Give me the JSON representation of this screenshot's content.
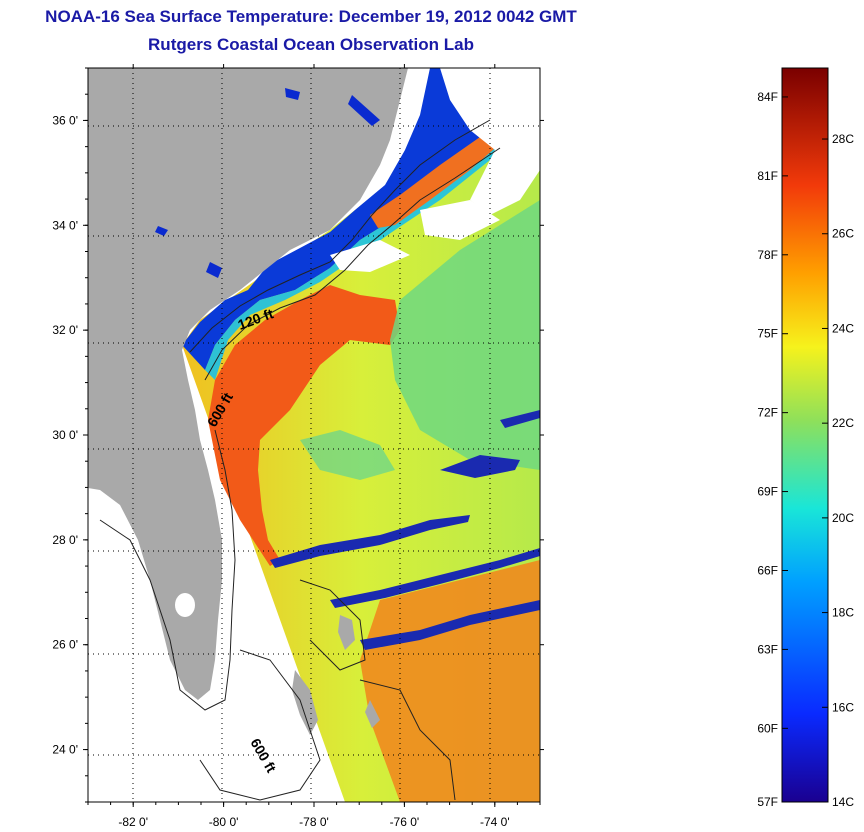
{
  "header": {
    "title": "NOAA-16 Sea Surface Temperature:  December 19, 2012 0042 GMT",
    "subtitle": "Rutgers Coastal Ocean Observation Lab"
  },
  "map": {
    "lon_range": [
      -83,
      -73
    ],
    "lat_range": [
      23,
      37
    ],
    "lon_ticks": [
      {
        "value": -82,
        "label": "-82 0'"
      },
      {
        "value": -80,
        "label": "-80 0'"
      },
      {
        "value": -78,
        "label": "-78 0'"
      },
      {
        "value": -76,
        "label": "-76 0'"
      },
      {
        "value": -74,
        "label": "-74 0'"
      }
    ],
    "lat_ticks": [
      {
        "value": 36,
        "label": "36 0'"
      },
      {
        "value": 34,
        "label": "34 0'"
      },
      {
        "value": 32,
        "label": "32 0'"
      },
      {
        "value": 30,
        "label": "30 0'"
      },
      {
        "value": 28,
        "label": "28 0'"
      },
      {
        "value": 26,
        "label": "26 0'"
      },
      {
        "value": 24,
        "label": "24 0'"
      }
    ],
    "grid": "dotted",
    "contour_labels": [
      {
        "text": "120 ft"
      },
      {
        "text": "600 ft"
      },
      {
        "text": "600 ft"
      }
    ],
    "colors": {
      "land": "#a9a9a9",
      "no_data": "#ffffff",
      "cold": "#0a2ad0",
      "cool": "#19d7e6",
      "mild": "#8fe05a",
      "warm": "#f2e11e",
      "hot": "#f1580f"
    }
  },
  "colorbar": {
    "range_c": [
      14,
      29.5
    ],
    "celsius_ticks": [
      "28C",
      "26C",
      "24C",
      "22C",
      "20C",
      "18C",
      "16C",
      "14C"
    ],
    "fahrenheit_ticks": [
      "84F",
      "81F",
      "78F",
      "75F",
      "72F",
      "69F",
      "66F",
      "63F",
      "60F",
      "57F"
    ]
  }
}
